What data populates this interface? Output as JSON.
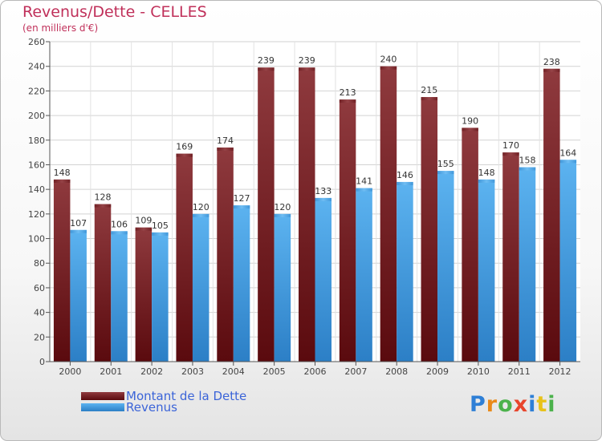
{
  "title": "Revenus/Dette - CELLES",
  "subtitle": "(en milliers d'€)",
  "chart_data": {
    "type": "bar",
    "title": "Revenus/Dette - CELLES",
    "subtitle": "(en milliers d'€)",
    "xlabel": "",
    "ylabel": "",
    "ylim": [
      0,
      260
    ],
    "yticks": [
      0,
      20,
      40,
      60,
      80,
      100,
      120,
      140,
      160,
      180,
      200,
      220,
      240,
      260
    ],
    "grid": true,
    "categories": [
      "2000",
      "2001",
      "2002",
      "2003",
      "2004",
      "2005",
      "2006",
      "2007",
      "2008",
      "2009",
      "2010",
      "2011",
      "2012"
    ],
    "series": [
      {
        "name": "Montant de la Dette",
        "color": "#7a1f24",
        "values": [
          148,
          128,
          109,
          169,
          174,
          239,
          239,
          213,
          240,
          215,
          190,
          170,
          238
        ]
      },
      {
        "name": "Revenus",
        "color": "#4aa3e6",
        "values": [
          107,
          106,
          105,
          120,
          127,
          120,
          133,
          141,
          146,
          155,
          148,
          158,
          164
        ]
      }
    ],
    "legend_position": "bottom-left"
  },
  "legend": {
    "items": [
      {
        "label": "Montant de la Dette",
        "color": "#6e0f14"
      },
      {
        "label": "Revenus",
        "color": "#4aa3e6"
      }
    ]
  },
  "logo": {
    "letters": [
      {
        "char": "P",
        "color": "#2e7fd6"
      },
      {
        "char": "r",
        "color": "#e98a1a"
      },
      {
        "char": "o",
        "color": "#4bb24b"
      },
      {
        "char": "x",
        "color": "#e8452c"
      },
      {
        "char": "i",
        "color": "#2e7fd6"
      },
      {
        "char": "t",
        "color": "#e8c21a"
      },
      {
        "char": "i",
        "color": "#4bb24b"
      }
    ]
  }
}
